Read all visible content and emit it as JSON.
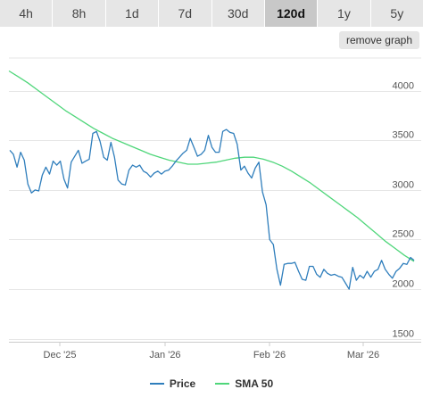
{
  "tabs": [
    "4h",
    "8h",
    "1d",
    "7d",
    "30d",
    "120d",
    "1y",
    "5y"
  ],
  "active_tab": "120d",
  "remove_graph_label": "remove graph",
  "colors": {
    "price": "#2f7ebc",
    "sma": "#4fd67a",
    "grid": "#e6e6e6",
    "axis": "#cccccc",
    "text": "#555555"
  },
  "chart_data": {
    "type": "line",
    "x_tick_labels": [
      "Dec '25",
      "Jan '26",
      "Feb '26",
      "Mar '26"
    ],
    "y_ticks": [
      1500,
      2000,
      2500,
      3000,
      3500,
      4000
    ],
    "ylim": [
      1470,
      4330
    ],
    "grid": true,
    "legend": "bottom",
    "series": [
      {
        "name": "Price",
        "values": [
          3400,
          3360,
          3230,
          3380,
          3300,
          3060,
          2970,
          3000,
          2990,
          3150,
          3230,
          3160,
          3290,
          3250,
          3290,
          3110,
          3020,
          3280,
          3340,
          3400,
          3270,
          3290,
          3310,
          3570,
          3590,
          3490,
          3330,
          3300,
          3480,
          3330,
          3100,
          3060,
          3050,
          3200,
          3250,
          3230,
          3250,
          3190,
          3170,
          3130,
          3170,
          3190,
          3160,
          3190,
          3200,
          3240,
          3290,
          3330,
          3370,
          3400,
          3520,
          3430,
          3340,
          3360,
          3400,
          3550,
          3430,
          3380,
          3380,
          3590,
          3610,
          3580,
          3570,
          3460,
          3200,
          3240,
          3170,
          3120,
          3220,
          3280,
          2980,
          2850,
          2500,
          2450,
          2200,
          2040,
          2250,
          2260,
          2260,
          2270,
          2180,
          2100,
          2090,
          2230,
          2230,
          2150,
          2120,
          2200,
          2160,
          2140,
          2150,
          2130,
          2120,
          2060,
          2000,
          2220,
          2090,
          2140,
          2110,
          2180,
          2120,
          2180,
          2200,
          2290,
          2200,
          2150,
          2110,
          2180,
          2210,
          2260,
          2250,
          2320,
          2290
        ]
      },
      {
        "name": "SMA 50",
        "values": [
          4200,
          4140,
          4080,
          4010,
          3940,
          3870,
          3800,
          3740,
          3680,
          3620,
          3570,
          3520,
          3480,
          3440,
          3400,
          3360,
          3330,
          3300,
          3280,
          3260,
          3260,
          3270,
          3280,
          3300,
          3320,
          3330,
          3330,
          3310,
          3280,
          3240,
          3190,
          3130,
          3070,
          3000,
          2930,
          2860,
          2790,
          2720,
          2640,
          2560,
          2480,
          2410,
          2340,
          2280
        ]
      }
    ]
  }
}
